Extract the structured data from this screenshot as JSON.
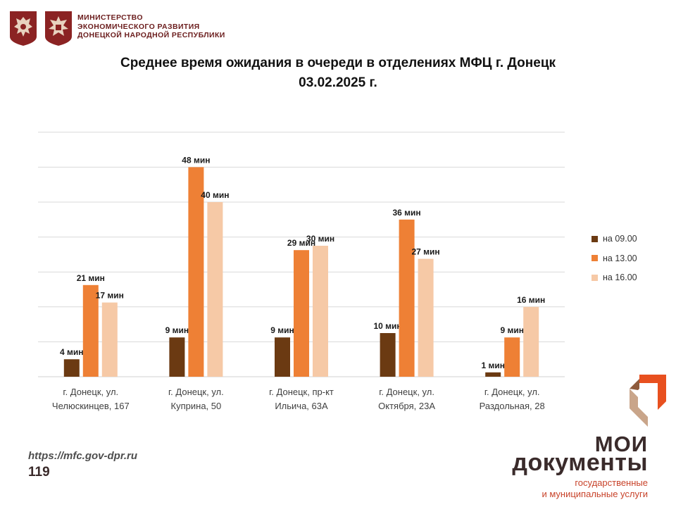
{
  "header": {
    "ministry_lines": [
      "МИНИСТЕРСТВО",
      "ЭКОНОМИЧЕСКОГО РАЗВИТИЯ",
      "ДОНЕЦКОЙ НАРОДНОЙ РЕСПУБЛИКИ"
    ]
  },
  "colors": {
    "series_09": "#6b3a12",
    "series_13": "#ee8035",
    "series_16": "#f6c9a6",
    "grid": "#d9d9d9",
    "emblem_bg": "#8b2323",
    "brand_orange": "#e8501f",
    "brand_dark": "#3a2b2b"
  },
  "chart_data": {
    "type": "bar",
    "title": "Среднее время ожидания в очереди в отделениях МФЦ г. Донецк",
    "subtitle": "03.02.2025 г.",
    "categories": [
      [
        "г. Донецк, ул.",
        "Челюскинцев, 167"
      ],
      [
        "г. Донецк, ул.",
        "Куприна, 50"
      ],
      [
        "г. Донецк, пр-кт",
        "Ильича, 63А"
      ],
      [
        "г. Донецк, ул.",
        "Октября, 23А"
      ],
      [
        "г. Донецк, ул.",
        "Раздольная, 28"
      ]
    ],
    "series": [
      {
        "name": "на 09.00",
        "values": [
          4,
          9,
          9,
          10,
          1
        ],
        "labels": [
          "4 мин",
          "9 мин",
          "9 мин",
          "10 мин",
          "1 мин"
        ]
      },
      {
        "name": "на 13.00",
        "values": [
          21,
          48,
          29,
          36,
          9
        ],
        "labels": [
          "21 мин",
          "48 мин",
          "29 мин",
          "36 мин",
          "9 мин"
        ]
      },
      {
        "name": "на 16.00",
        "values": [
          17,
          40,
          30,
          27,
          16
        ],
        "labels": [
          "17 мин",
          "40 мин",
          "30 мин",
          "27 мин",
          "16 мин"
        ]
      }
    ],
    "ylim": [
      0,
      60
    ],
    "y_grid_step": 8,
    "grid": true,
    "legend": "right"
  },
  "footer": {
    "url": "https://mfc.gov-dpr.ru",
    "page": "119"
  },
  "brand": {
    "line1": "МОИ",
    "line2": "документы",
    "sub1": "государственные",
    "sub2": "и муниципальные услуги"
  }
}
